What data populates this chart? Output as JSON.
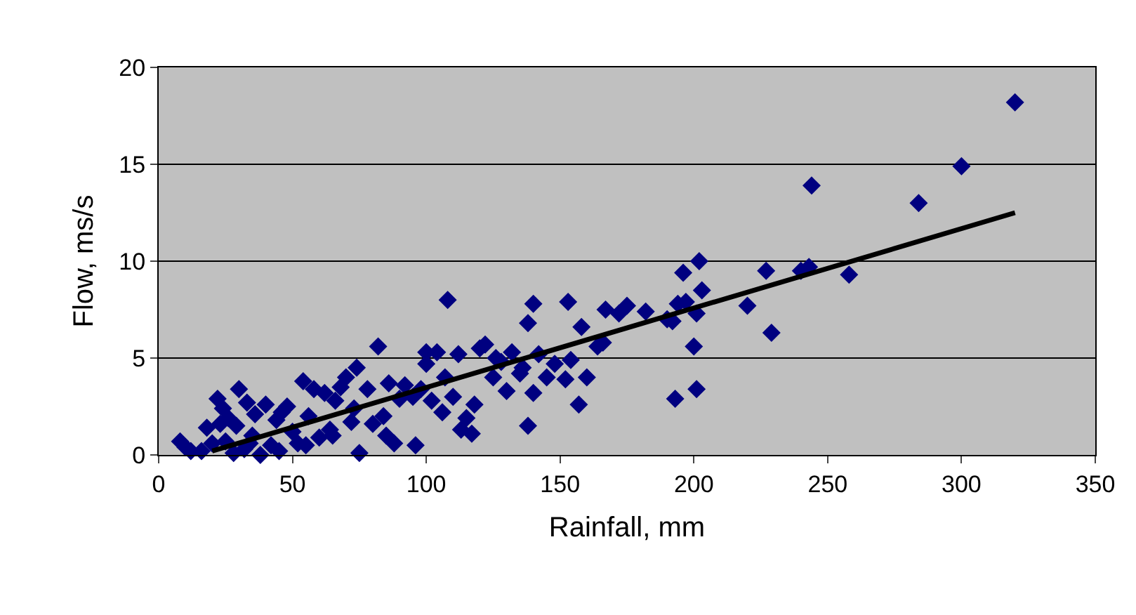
{
  "chart_data": {
    "type": "scatter",
    "xlabel": "Rainfall, mm",
    "ylabel": "Flow, ms/s",
    "xlim": [
      0,
      350
    ],
    "xticks": [
      0,
      50,
      100,
      150,
      200,
      250,
      300,
      350
    ],
    "ylim": [
      0,
      20
    ],
    "yticks": [
      0,
      5,
      10,
      15,
      20
    ],
    "grid": "y",
    "legend": false,
    "marker": "diamond",
    "series": [
      {
        "color": "#000080",
        "x": [
          320,
          300,
          284,
          244,
          258,
          243,
          240,
          229,
          227,
          220,
          202,
          203,
          201,
          200,
          201,
          197,
          196,
          194,
          193,
          192,
          190,
          182,
          175,
          172,
          167,
          166,
          164,
          160,
          158,
          157,
          153,
          154,
          152,
          148,
          145,
          142,
          140,
          140,
          138,
          138,
          136,
          135,
          132,
          130,
          128,
          126,
          122,
          120,
          118,
          117,
          115,
          113,
          112,
          110,
          108,
          106,
          104,
          102,
          100,
          100,
          98,
          96,
          95,
          92,
          90,
          88,
          86,
          84,
          82,
          80,
          78,
          75,
          74,
          73,
          72,
          70,
          68,
          66,
          64,
          62,
          60,
          58,
          56,
          54,
          52,
          50,
          48,
          46,
          44,
          42,
          40,
          38,
          36,
          35,
          33,
          32,
          30,
          29,
          28,
          26,
          25,
          23,
          22,
          20,
          18,
          16,
          12,
          8,
          10,
          24,
          34,
          45,
          55,
          65,
          85,
          107,
          125
        ],
        "values": [
          18.2,
          14.9,
          13.0,
          13.9,
          9.3,
          9.7,
          9.5,
          6.3,
          9.5,
          7.7,
          10.0,
          8.5,
          7.3,
          5.6,
          3.4,
          7.9,
          9.4,
          7.8,
          2.9,
          6.9,
          7.0,
          7.4,
          7.7,
          7.3,
          7.5,
          5.8,
          5.6,
          4.0,
          6.6,
          2.6,
          7.9,
          4.9,
          3.9,
          4.7,
          4.0,
          5.2,
          7.8,
          3.2,
          6.8,
          1.5,
          4.5,
          4.2,
          5.3,
          3.3,
          4.8,
          5.0,
          5.7,
          5.5,
          2.6,
          1.1,
          1.9,
          1.3,
          5.2,
          3.0,
          8.0,
          2.2,
          5.3,
          2.8,
          4.7,
          5.3,
          3.4,
          0.5,
          3.0,
          3.6,
          2.9,
          0.6,
          3.7,
          2.0,
          5.6,
          1.6,
          3.4,
          0.1,
          4.5,
          2.4,
          1.7,
          4.0,
          3.5,
          2.8,
          1.3,
          3.2,
          0.9,
          3.4,
          2.0,
          3.8,
          0.6,
          1.2,
          2.5,
          2.2,
          1.8,
          0.5,
          2.6,
          0.0,
          2.1,
          1.0,
          2.7,
          0.3,
          3.4,
          1.5,
          0.1,
          1.9,
          0.7,
          1.6,
          2.9,
          0.6,
          1.4,
          0.2,
          0.2,
          0.7,
          0.4,
          2.4,
          0.6,
          0.2,
          0.5,
          1.0,
          1.0,
          4.0,
          4.0
        ]
      },
      {
        "color": "#000000",
        "type": "line",
        "marker": "none",
        "x": [
          20,
          320
        ],
        "values": [
          0.2,
          12.5
        ]
      }
    ]
  }
}
